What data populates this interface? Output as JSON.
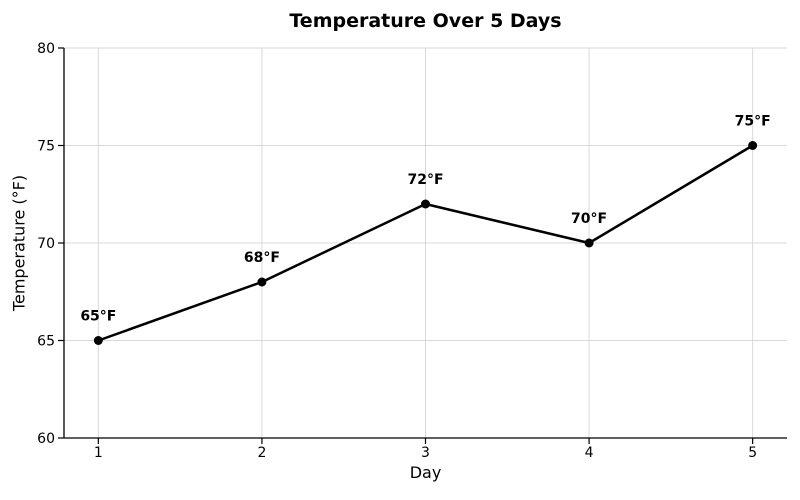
{
  "chart_data": {
    "type": "line",
    "title": "Temperature Over 5 Days",
    "xlabel": "Day",
    "ylabel": "Temperature (°F)",
    "x": [
      1,
      2,
      3,
      4,
      5
    ],
    "values": [
      65,
      68,
      72,
      70,
      75
    ],
    "point_labels": [
      "65°F",
      "68°F",
      "72°F",
      "70°F",
      "75°F"
    ],
    "xtick_labels": [
      "1",
      "2",
      "3",
      "4",
      "5"
    ],
    "yticks": [
      60,
      65,
      70,
      75,
      80
    ],
    "ylim": [
      60,
      80
    ],
    "xlim": [
      0.79,
      5.21
    ],
    "grid": true,
    "legend": "none",
    "line_color": "#000000",
    "marker_color": "#000000",
    "grid_color": "#d9d9d9",
    "spine_color": "#000000",
    "text_color": "#000000",
    "background": "#ffffff"
  }
}
